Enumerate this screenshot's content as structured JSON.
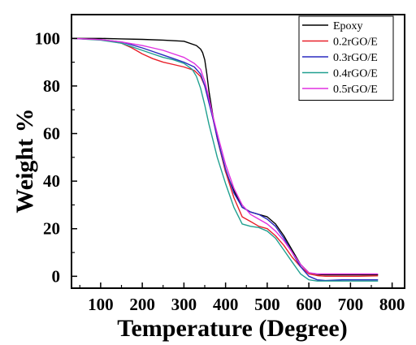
{
  "chart_data": {
    "type": "line",
    "xlabel": "Temperature (Degree)",
    "ylabel": "Weight %",
    "xlim": [
      30,
      830
    ],
    "ylim": [
      -5,
      110
    ],
    "xticks": [
      100,
      200,
      300,
      400,
      500,
      600,
      700,
      800
    ],
    "yticks": [
      0,
      20,
      40,
      60,
      80,
      100
    ],
    "grid": false,
    "legend_position": "top-right",
    "series": [
      {
        "name": "Epoxy",
        "color": "#000000",
        "x": [
          30,
          100,
          150,
          200,
          250,
          300,
          330,
          340,
          345,
          350,
          355,
          360,
          370,
          380,
          400,
          420,
          440,
          460,
          480,
          500,
          520,
          540,
          560,
          580,
          600,
          620,
          640,
          680,
          720,
          765
        ],
        "y": [
          100,
          100,
          99.8,
          99.6,
          99.3,
          98.8,
          97,
          95.5,
          94,
          91,
          85,
          78,
          67,
          58,
          44,
          36,
          29,
          27,
          26,
          25,
          22,
          17,
          11,
          5,
          1.5,
          0.8,
          0.6,
          0.6,
          0.6,
          0.6
        ]
      },
      {
        "name": "0.2rGO/E",
        "color": "#e8202a",
        "x": [
          30,
          100,
          150,
          175,
          200,
          225,
          250,
          275,
          300,
          325,
          340,
          350,
          360,
          370,
          380,
          400,
          420,
          440,
          460,
          480,
          500,
          520,
          540,
          560,
          580,
          600,
          620,
          640,
          680,
          720,
          765
        ],
        "y": [
          100,
          99.5,
          98,
          96,
          93.5,
          91.5,
          90,
          89,
          88,
          86.5,
          84,
          80,
          74,
          66,
          58,
          44,
          33,
          25,
          23,
          21,
          20,
          17,
          13,
          8,
          4,
          1,
          0.3,
          0,
          0,
          0,
          0.2
        ]
      },
      {
        "name": "0.3rGO/E",
        "color": "#2a2ac0",
        "x": [
          30,
          100,
          150,
          200,
          225,
          250,
          275,
          300,
          325,
          340,
          350,
          360,
          370,
          380,
          400,
          420,
          440,
          460,
          480,
          500,
          520,
          540,
          560,
          580,
          600,
          620,
          640,
          680,
          720,
          765
        ],
        "y": [
          100,
          99.5,
          98.5,
          96,
          94.5,
          93,
          91.5,
          90,
          88,
          85,
          80,
          73,
          66,
          58,
          45,
          35,
          29,
          27,
          26,
          24,
          21,
          16,
          10,
          4,
          0,
          -1.5,
          -1.8,
          -1.5,
          -1.5,
          -1.5
        ]
      },
      {
        "name": "0.4rGO/E",
        "color": "#20a090",
        "x": [
          30,
          100,
          150,
          175,
          200,
          225,
          250,
          275,
          300,
          320,
          330,
          340,
          350,
          360,
          370,
          380,
          400,
          420,
          440,
          460,
          480,
          500,
          520,
          540,
          560,
          580,
          600,
          620,
          640,
          680,
          720,
          765
        ],
        "y": [
          100,
          99.3,
          98,
          96.5,
          95,
          93.5,
          92,
          91,
          89.5,
          87,
          84,
          79,
          72,
          64,
          57,
          50,
          39,
          29,
          22,
          21,
          20.5,
          19,
          16,
          11,
          6,
          1,
          -1.5,
          -2,
          -2,
          -2,
          -2,
          -2
        ]
      },
      {
        "name": "0.5rGO/E",
        "color": "#e030e0",
        "x": [
          30,
          100,
          150,
          200,
          225,
          250,
          275,
          300,
          325,
          340,
          350,
          360,
          370,
          380,
          400,
          420,
          440,
          460,
          480,
          500,
          520,
          540,
          560,
          580,
          600,
          620,
          640,
          680,
          720,
          765
        ],
        "y": [
          100,
          99.5,
          98.5,
          97,
          96,
          95,
          93.5,
          92,
          89.5,
          87,
          82,
          75,
          67,
          60,
          47,
          37,
          30,
          26,
          24,
          22,
          19,
          15,
          10,
          5,
          1.5,
          1,
          1,
          1,
          1,
          1
        ]
      }
    ]
  }
}
